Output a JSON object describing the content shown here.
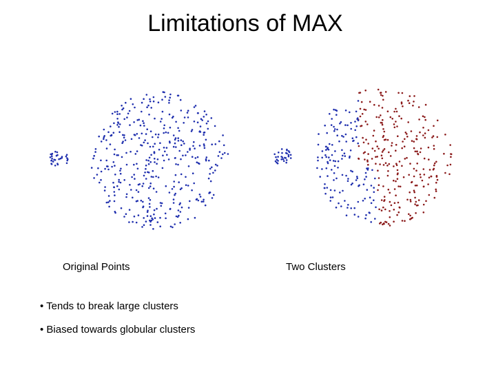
{
  "slide": {
    "title": "Limitations of MAX"
  },
  "panels": {
    "left_caption": "Original Points",
    "right_caption": "Two Clusters"
  },
  "bullets": [
    "• Tends to break large clusters",
    "• Biased towards globular clusters"
  ],
  "colors": {
    "cluster_blue": "#1f2fae",
    "cluster_red": "#8b1a1a"
  }
}
